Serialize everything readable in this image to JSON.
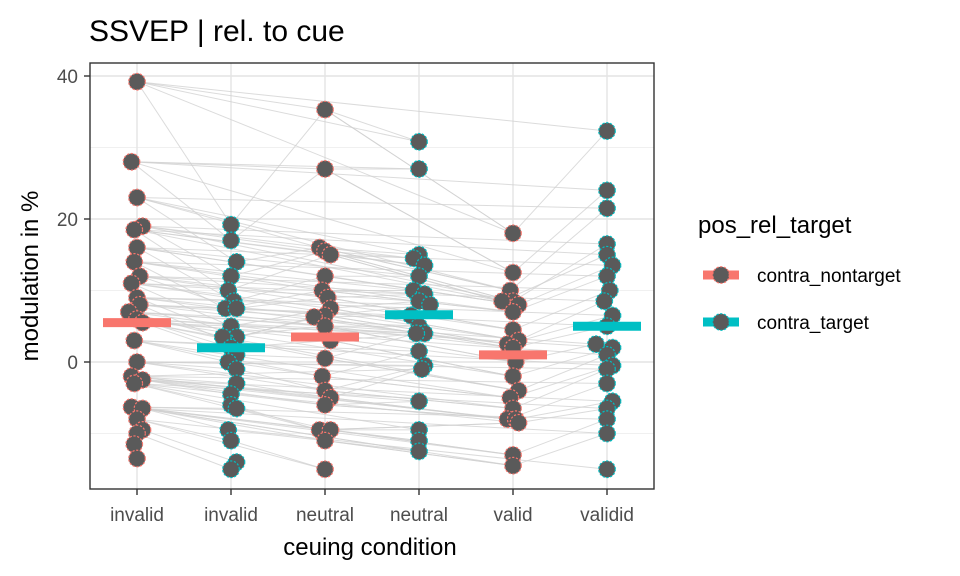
{
  "chart_data": {
    "type": "scatter",
    "title": "SSVEP | rel. to cue",
    "xlabel": "ceuing condition",
    "ylabel": "modulation in %",
    "categories": [
      "invalid",
      "invalid",
      "neutral",
      "neutral",
      "valid",
      "validid"
    ],
    "ylim": [
      -17.5,
      42
    ],
    "yticks": [
      0,
      20,
      40
    ],
    "grid": true,
    "legend": {
      "title": "pos_rel_target",
      "placement": "right",
      "entries": [
        {
          "label": "contra_nontarget",
          "color": "#F8766D"
        },
        {
          "label": "contra_target",
          "color": "#00BFC4"
        }
      ]
    },
    "point_fill": "#5a5a5a",
    "means": [
      {
        "category_index": 0,
        "value": 5.5,
        "series": "contra_nontarget"
      },
      {
        "category_index": 1,
        "value": 2.0,
        "series": "contra_target"
      },
      {
        "category_index": 2,
        "value": 3.5,
        "series": "contra_nontarget"
      },
      {
        "category_index": 3,
        "value": 6.6,
        "series": "contra_target"
      },
      {
        "category_index": 4,
        "value": 1.0,
        "series": "contra_nontarget"
      },
      {
        "category_index": 5,
        "value": 5.0,
        "series": "contra_target"
      }
    ],
    "points": [
      [
        [
          0.0,
          39.2
        ],
        [
          -0.1,
          28.0
        ],
        [
          0.0,
          23.0
        ],
        [
          0.1,
          19.0
        ],
        [
          -0.05,
          18.5
        ],
        [
          0.0,
          16.0
        ],
        [
          -0.05,
          14.0
        ],
        [
          0.05,
          12.0
        ],
        [
          -0.1,
          11.0
        ],
        [
          0.0,
          9.0
        ],
        [
          0.05,
          8.0
        ],
        [
          -0.15,
          7.0
        ],
        [
          0.0,
          6.0
        ],
        [
          0.1,
          5.5
        ],
        [
          -0.05,
          3.0
        ],
        [
          0.0,
          0.0
        ],
        [
          -0.1,
          -2.0
        ],
        [
          0.1,
          -2.5
        ],
        [
          -0.05,
          -3.0
        ],
        [
          -0.1,
          -6.3
        ],
        [
          0.1,
          -6.5
        ],
        [
          0.0,
          -8.0
        ],
        [
          0.1,
          -9.5
        ],
        [
          0.0,
          -10.0
        ],
        [
          -0.05,
          -11.5
        ],
        [
          0.0,
          -13.5
        ]
      ],
      [
        [
          0.0,
          19.2
        ],
        [
          0.0,
          17.0
        ],
        [
          0.1,
          14.0
        ],
        [
          0.0,
          12.0
        ],
        [
          -0.05,
          10.0
        ],
        [
          0.05,
          8.5
        ],
        [
          -0.1,
          7.5
        ],
        [
          0.1,
          7.5
        ],
        [
          0.0,
          5.0
        ],
        [
          0.1,
          3.5
        ],
        [
          -0.1,
          3.0
        ],
        [
          -0.15,
          3.5
        ],
        [
          0.0,
          2.0
        ],
        [
          0.1,
          1.0
        ],
        [
          -0.05,
          0.0
        ],
        [
          0.1,
          -1.0
        ],
        [
          0.1,
          -3.0
        ],
        [
          0.0,
          -4.5
        ],
        [
          0.0,
          -6.0
        ],
        [
          0.1,
          -6.5
        ],
        [
          -0.05,
          -9.5
        ],
        [
          0.0,
          -11.0
        ],
        [
          0.1,
          -14.0
        ],
        [
          0.0,
          -15.0
        ]
      ],
      [
        [
          0.0,
          35.3
        ],
        [
          0.0,
          27.0
        ],
        [
          -0.1,
          16.0
        ],
        [
          0.0,
          15.5
        ],
        [
          0.1,
          15.0
        ],
        [
          0.0,
          12.0
        ],
        [
          -0.05,
          10.0
        ],
        [
          0.05,
          9.0
        ],
        [
          0.1,
          7.5
        ],
        [
          0.0,
          6.5
        ],
        [
          -0.2,
          6.3
        ],
        [
          0.0,
          5.0
        ],
        [
          0.1,
          3.0
        ],
        [
          0.0,
          0.5
        ],
        [
          -0.05,
          -2.0
        ],
        [
          0.0,
          -4.0
        ],
        [
          0.1,
          -5.0
        ],
        [
          0.0,
          -6.0
        ],
        [
          -0.1,
          -9.5
        ],
        [
          0.1,
          -9.5
        ],
        [
          0.0,
          -11.0
        ],
        [
          0.0,
          -15.0
        ]
      ],
      [
        [
          0.0,
          30.8
        ],
        [
          0.0,
          27.0
        ],
        [
          0.0,
          15.0
        ],
        [
          -0.1,
          14.5
        ],
        [
          0.1,
          13.5
        ],
        [
          0.0,
          12.0
        ],
        [
          -0.1,
          10.0
        ],
        [
          0.1,
          9.5
        ],
        [
          0.0,
          8.5
        ],
        [
          0.2,
          8.0
        ],
        [
          -0.15,
          6.5
        ],
        [
          0.0,
          5.0
        ],
        [
          0.1,
          4.0
        ],
        [
          -0.05,
          4.0
        ],
        [
          0.0,
          1.5
        ],
        [
          0.1,
          -0.5
        ],
        [
          0.05,
          -1.0
        ],
        [
          0.0,
          -5.5
        ],
        [
          0.0,
          -9.5
        ],
        [
          0.0,
          -11.0
        ],
        [
          0.0,
          -12.5
        ]
      ],
      [
        [
          0.0,
          18.0
        ],
        [
          0.0,
          12.5
        ],
        [
          -0.05,
          10.0
        ],
        [
          0.0,
          8.5
        ],
        [
          -0.2,
          8.5
        ],
        [
          0.1,
          8.0
        ],
        [
          0.0,
          7.0
        ],
        [
          0.0,
          4.5
        ],
        [
          0.1,
          3.0
        ],
        [
          -0.1,
          2.5
        ],
        [
          0.0,
          2.0
        ],
        [
          0.05,
          0.0
        ],
        [
          0.0,
          -2.0
        ],
        [
          0.1,
          -4.0
        ],
        [
          -0.05,
          -5.0
        ],
        [
          0.0,
          -6.5
        ],
        [
          -0.1,
          -8.0
        ],
        [
          0.05,
          -8.0
        ],
        [
          0.1,
          -8.5
        ],
        [
          0.0,
          -13.0
        ],
        [
          0.0,
          -14.5
        ]
      ],
      [
        [
          0.0,
          32.3
        ],
        [
          0.0,
          24.0
        ],
        [
          0.0,
          21.5
        ],
        [
          0.0,
          16.5
        ],
        [
          0.0,
          15.0
        ],
        [
          0.1,
          13.5
        ],
        [
          0.0,
          12.0
        ],
        [
          0.05,
          10.0
        ],
        [
          -0.05,
          8.5
        ],
        [
          0.1,
          6.5
        ],
        [
          0.0,
          5.0
        ],
        [
          -0.2,
          2.5
        ],
        [
          0.1,
          2.0
        ],
        [
          0.0,
          1.0
        ],
        [
          0.1,
          -0.5
        ],
        [
          0.0,
          -1.0
        ],
        [
          0.0,
          -3.0
        ],
        [
          0.1,
          -5.5
        ],
        [
          0.0,
          -6.5
        ],
        [
          0.0,
          -8.0
        ],
        [
          0.0,
          -10.0
        ],
        [
          0.0,
          -15.0
        ]
      ]
    ],
    "pairs": [
      [
        [
          0,
          1
        ],
        [
          0,
          2
        ],
        [
          0,
          5
        ],
        [
          0,
          8
        ],
        [
          0,
          10
        ],
        [
          0,
          14
        ],
        [
          0,
          17
        ],
        [
          0,
          20
        ],
        [
          0,
          22
        ]
      ],
      [
        [
          2,
          3
        ],
        [
          2,
          6
        ],
        [
          2,
          10
        ],
        [
          2,
          12
        ],
        [
          2,
          14
        ],
        [
          2,
          18
        ]
      ],
      [
        [
          4,
          5
        ],
        [
          4,
          7
        ],
        [
          4,
          9
        ],
        [
          4,
          11
        ],
        [
          4,
          15
        ],
        [
          4,
          18
        ]
      ],
      [
        [
          0,
          3
        ],
        [
          0,
          4
        ],
        [
          0,
          9
        ],
        [
          0,
          11
        ],
        [
          0,
          12
        ],
        [
          0,
          16
        ],
        [
          0,
          19
        ],
        [
          0,
          24
        ]
      ],
      [
        [
          2,
          1
        ],
        [
          2,
          2
        ],
        [
          2,
          4
        ],
        [
          2,
          8
        ],
        [
          2,
          13
        ],
        [
          2,
          17
        ]
      ],
      [
        [
          4,
          2
        ],
        [
          4,
          4
        ],
        [
          4,
          6
        ],
        [
          4,
          10
        ],
        [
          4,
          16
        ],
        [
          4,
          19
        ]
      ]
    ]
  }
}
